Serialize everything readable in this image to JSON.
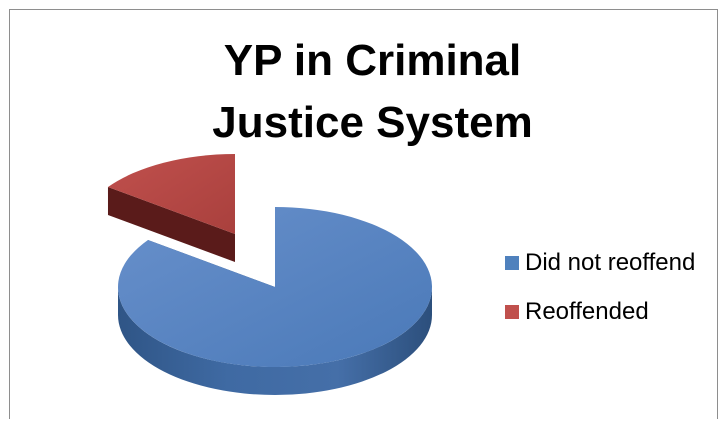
{
  "chart_data": {
    "type": "pie",
    "title": "YP in Criminal Justice System",
    "title_lines": [
      "YP in Criminal",
      "Justice System"
    ],
    "categories": [
      "Did not reoffend",
      "Reoffended"
    ],
    "values": [
      85,
      15
    ],
    "colors": [
      "#4f81bd",
      "#c0504d"
    ],
    "legend_position": "right",
    "style": "3d-exploded"
  }
}
